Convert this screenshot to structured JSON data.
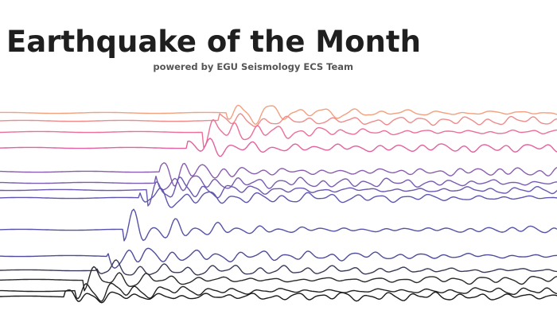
{
  "header": {
    "title": "Earthquake of the Month",
    "subtitle": "powered by EGU Seismology ECS Team"
  }
}
